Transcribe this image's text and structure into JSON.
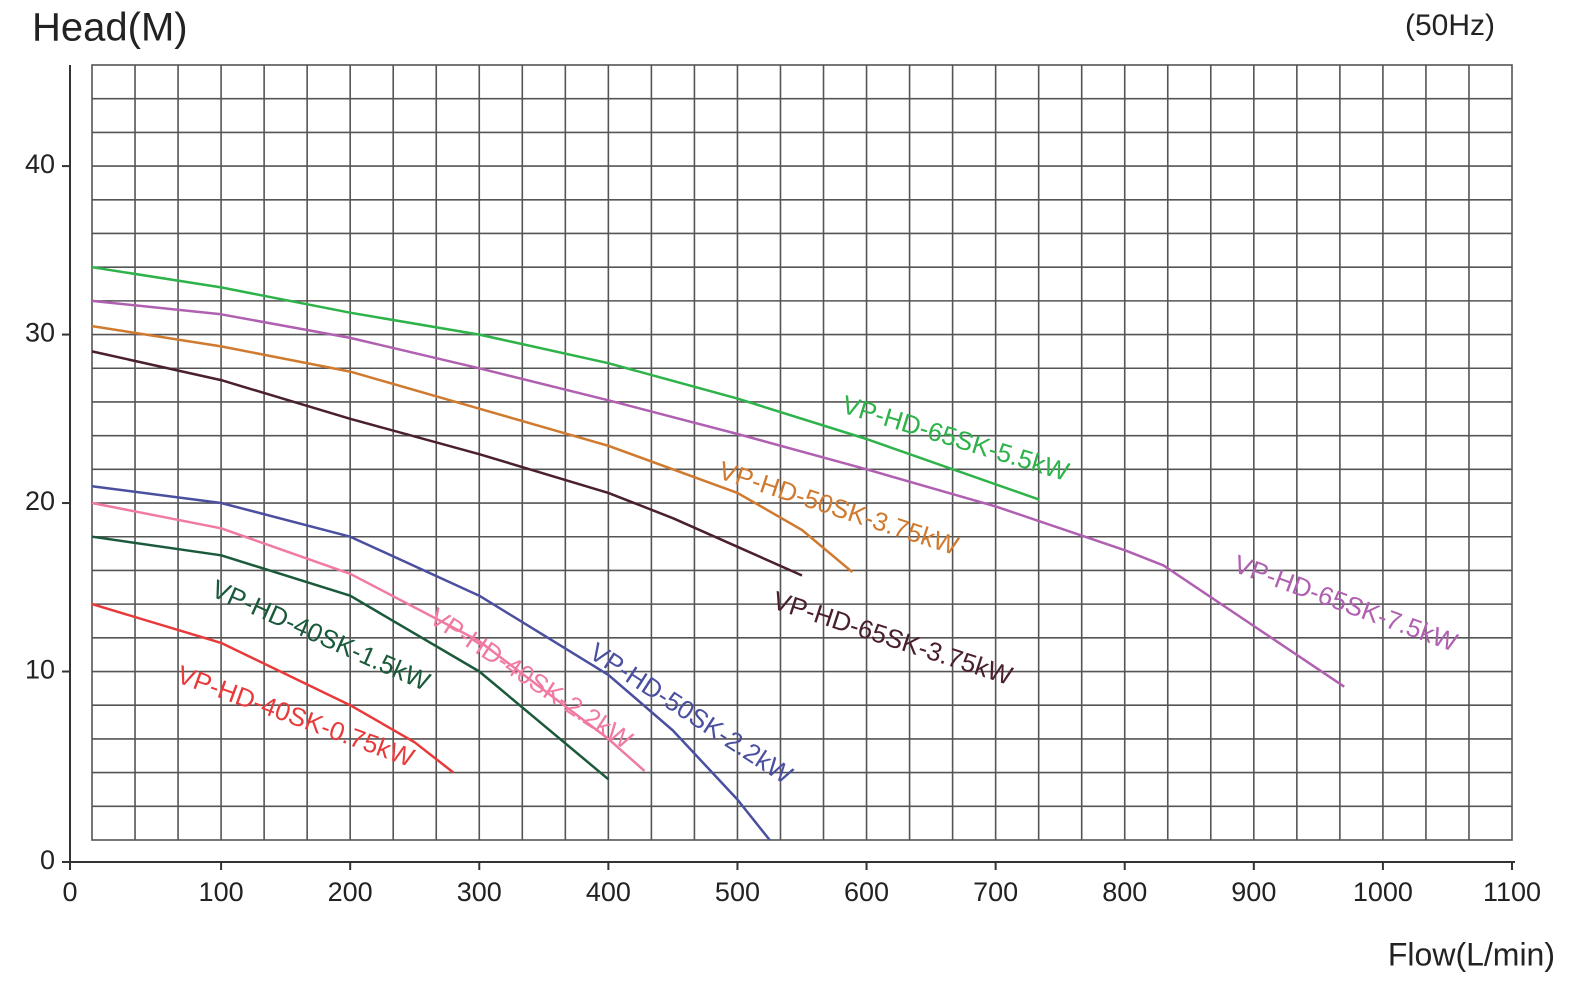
{
  "chart_data": {
    "type": "line",
    "title": "Head(M)",
    "subtitle": "(50Hz)",
    "x_label": "Flow(L/min)",
    "xlim": [
      0,
      1100
    ],
    "ylim": [
      0,
      46
    ],
    "xticks": [
      0,
      100,
      200,
      300,
      400,
      500,
      600,
      700,
      800,
      900,
      1000,
      1100
    ],
    "yticks": [
      0,
      10,
      20,
      30,
      40
    ],
    "grid": true,
    "minor_grid": {
      "x": 3,
      "y": 5
    },
    "series": [
      {
        "name": "VP-HD-65SK-5.5kW",
        "color": "#2db34a",
        "x": [
          0,
          100,
          200,
          300,
          400,
          500,
          600,
          734
        ],
        "values": [
          34,
          32.8,
          31.3,
          30,
          28.3,
          26.2,
          23.8,
          20.2
        ]
      },
      {
        "name": "VP-HD-65SK-7.5kW",
        "color": "#b060b0",
        "x": [
          0,
          100,
          200,
          300,
          400,
          500,
          600,
          700,
          800,
          830,
          900,
          970
        ],
        "values": [
          32,
          31.2,
          29.8,
          28,
          26.1,
          24.1,
          22,
          19.8,
          17.2,
          16.3,
          12.7,
          9.1
        ]
      },
      {
        "name": "VP-HD-50SK-3.75kW",
        "color": "#d07a30",
        "x": [
          0,
          100,
          200,
          300,
          400,
          500,
          550,
          589
        ],
        "values": [
          30.5,
          29.3,
          27.8,
          25.6,
          23.4,
          20.6,
          18.4,
          15.9
        ]
      },
      {
        "name": "VP-HD-65SK-3.75kW",
        "color": "#4a2030",
        "x": [
          0,
          100,
          200,
          300,
          400,
          450,
          500,
          550
        ],
        "values": [
          29,
          27.3,
          25,
          22.9,
          20.6,
          19.1,
          17.4,
          15.7
        ]
      },
      {
        "name": "VP-HD-50SK-2.2kW",
        "color": "#4a4fa0",
        "x": [
          0,
          100,
          200,
          300,
          400,
          450,
          500,
          525
        ],
        "values": [
          21,
          20,
          18,
          14.5,
          9.8,
          6.5,
          2.4,
          0
        ]
      },
      {
        "name": "VP-HD-40SK-2.2kW",
        "color": "#f07aa0",
        "x": [
          0,
          100,
          200,
          300,
          400,
          428
        ],
        "values": [
          20,
          18.5,
          15.8,
          11.8,
          6,
          4.1
        ]
      },
      {
        "name": "VP-HD-40SK-1.5kW",
        "color": "#1a5a3a",
        "x": [
          0,
          100,
          200,
          300,
          400
        ],
        "values": [
          18,
          16.9,
          14.5,
          10,
          3.6
        ]
      },
      {
        "name": "VP-HD-40SK-0.75kW",
        "color": "#e83a3a",
        "x": [
          0,
          100,
          200,
          250,
          280
        ],
        "values": [
          14,
          11.7,
          8,
          5.8,
          4
        ]
      }
    ]
  }
}
